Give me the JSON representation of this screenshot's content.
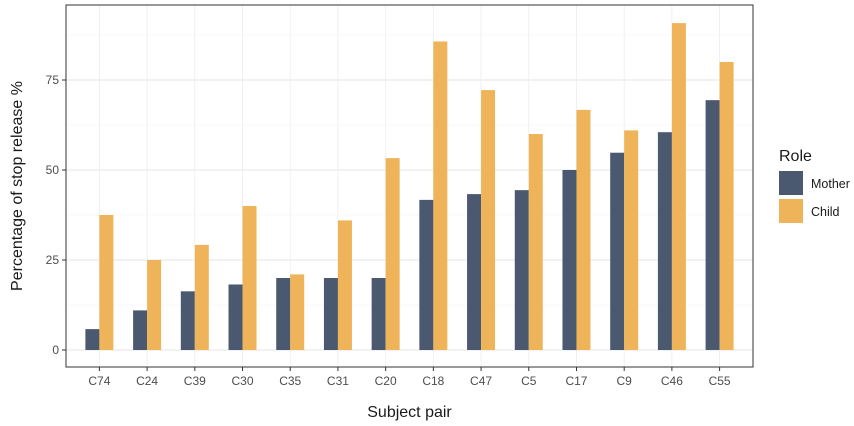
{
  "chart_data": {
    "type": "bar",
    "xlabel": "Subject pair",
    "ylabel": "Percentage of stop release %",
    "ylim": [
      0,
      95
    ],
    "yticks": [
      0,
      25,
      50,
      75
    ],
    "grid": true,
    "legend": {
      "title": "Role",
      "position": "right"
    },
    "categories": [
      "C74",
      "C24",
      "C39",
      "C30",
      "C35",
      "C31",
      "C20",
      "C18",
      "C47",
      "C5",
      "C17",
      "C9",
      "C46",
      "C55"
    ],
    "series": [
      {
        "name": "Mother",
        "color": "#4a596f",
        "values": [
          5.8,
          11,
          16.3,
          18.2,
          20,
          20,
          20,
          41.7,
          43.3,
          44.4,
          50,
          54.8,
          60.5,
          69.4
        ]
      },
      {
        "name": "Child",
        "color": "#efb45a",
        "values": [
          37.5,
          25,
          29.2,
          40,
          21,
          36,
          53.3,
          85.7,
          72.2,
          60,
          66.7,
          61,
          90.8,
          80
        ]
      }
    ]
  }
}
